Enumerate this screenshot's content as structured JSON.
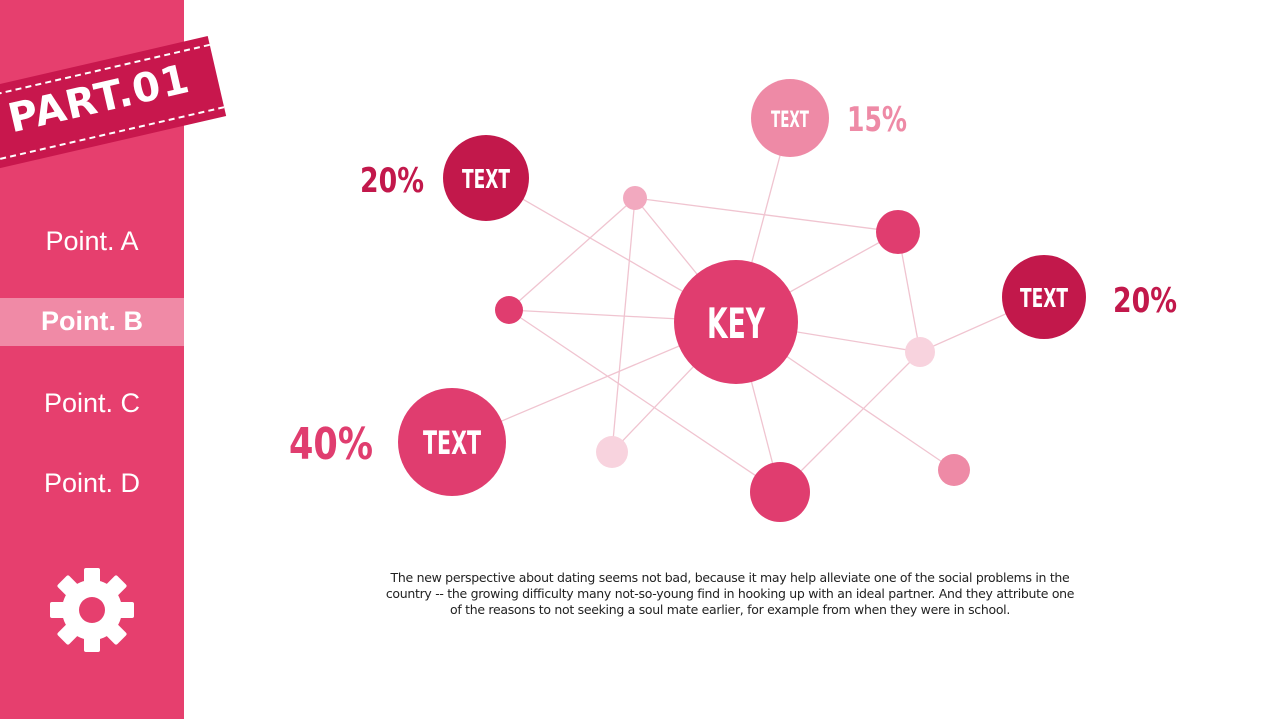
{
  "sidebar": {
    "badge": "PART.01",
    "items": [
      {
        "label": "Point. A",
        "active": false
      },
      {
        "label": "Point. B",
        "active": true
      },
      {
        "label": "Point. C",
        "active": false
      },
      {
        "label": "Point. D",
        "active": false
      }
    ],
    "icon": "gear-icon"
  },
  "diagram": {
    "center_label": "KEY",
    "labeled_nodes": [
      {
        "label": "TEXT",
        "percent": "20%",
        "color": "#c2184b"
      },
      {
        "label": "TEXT",
        "percent": "15%",
        "color": "#ee8aa6"
      },
      {
        "label": "TEXT",
        "percent": "20%",
        "color": "#c2184b"
      },
      {
        "label": "TEXT",
        "percent": "40%",
        "color": "#e03d6f"
      }
    ]
  },
  "description": "The new perspective about dating seems not bad, because it may help alleviate one of the social problems in the country -- the growing difficulty many not-so-young find in hooking up with an ideal partner. And they attribute one of the reasons to not seeking a soul mate earlier, for example from when they were in school.",
  "colors": {
    "sidebar": "#e63f6e",
    "accent_dark": "#c2184b",
    "accent": "#e03d6f",
    "light": "#f8d3de",
    "line": "#f0c4d0"
  }
}
